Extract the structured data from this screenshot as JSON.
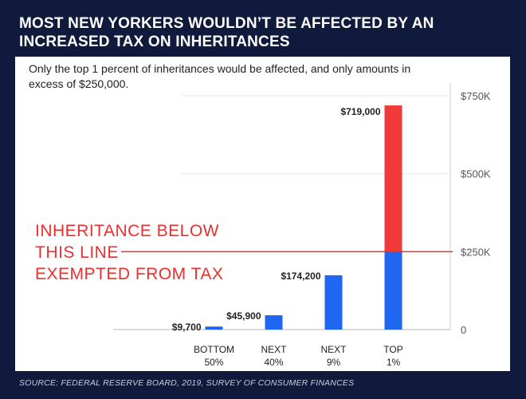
{
  "header": {
    "title": "MOST NEW YORKERS WOULDN’T BE AFFECTED BY AN INCREASED TAX ON INHERITANCES",
    "subtitle": "Only the top 1 percent of inheritances would be affected, and only amounts in excess of $250,000."
  },
  "annotation": {
    "lines": [
      "INHERITANCE BELOW",
      "THIS LINE",
      "EXEMPTED FROM TAX"
    ]
  },
  "source": "SOURCE: FEDERAL RESERVE BOARD, 2019, SURVEY OF CONSUMER FINANCES",
  "colors": {
    "background": "#0f1a3c",
    "exempt_bar": "#1f66f0",
    "taxed_bar": "#f23a3a",
    "threshold_line": "#e8302f"
  },
  "chart_data": {
    "type": "bar",
    "stacked": true,
    "categories": [
      [
        "BOTTOM",
        "50%"
      ],
      [
        "NEXT",
        "40%"
      ],
      [
        "NEXT",
        "9%"
      ],
      [
        "TOP",
        "1%"
      ]
    ],
    "values": [
      9700,
      45900,
      174200,
      719000
    ],
    "data_labels": [
      "$9,700",
      "$45,900",
      "$174,200",
      "$719,000"
    ],
    "threshold": 250000,
    "series": [
      {
        "values": [
          9700,
          45900,
          174200,
          250000
        ]
      },
      {
        "values": [
          0,
          0,
          0,
          469000
        ]
      }
    ],
    "ylim": [
      0,
      750000
    ],
    "yticks": [
      0,
      250000,
      500000,
      750000
    ],
    "ytick_labels": [
      "0",
      "$250K",
      "$500K",
      "$750K"
    ],
    "y_axis_side": "right",
    "grid": true
  }
}
